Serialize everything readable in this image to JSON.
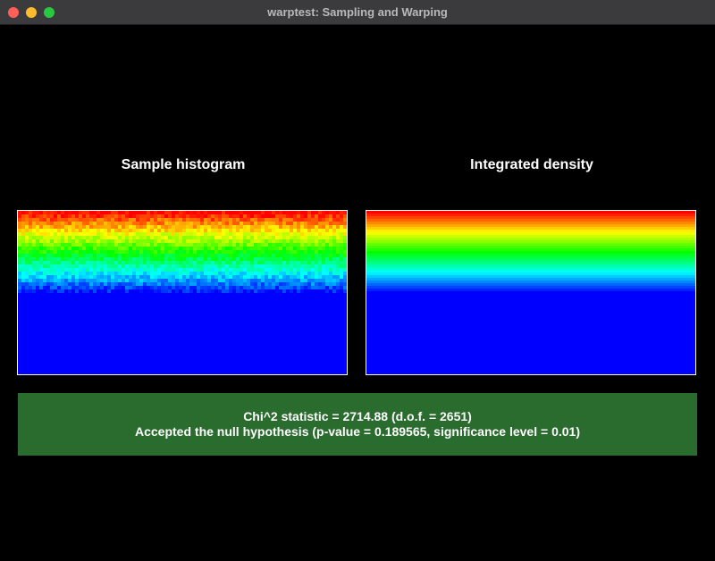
{
  "window": {
    "title": "warptest: Sampling and Warping"
  },
  "panels": {
    "histogram": {
      "label": "Sample histogram"
    },
    "density": {
      "label": "Integrated density"
    }
  },
  "result": {
    "line1": "Chi^2 statistic = 2714.88 (d.o.f. = 2651)",
    "line2": "Accepted the null hypothesis (p-value = 0.189565, significance level = 0.01)",
    "color": "#2a6b2e"
  },
  "colormap": {
    "stops": [
      "#ff0000",
      "#ff8000",
      "#ffff00",
      "#80ff00",
      "#00ff00",
      "#00ff80",
      "#00ffff",
      "#0080ff",
      "#0000ff"
    ]
  }
}
